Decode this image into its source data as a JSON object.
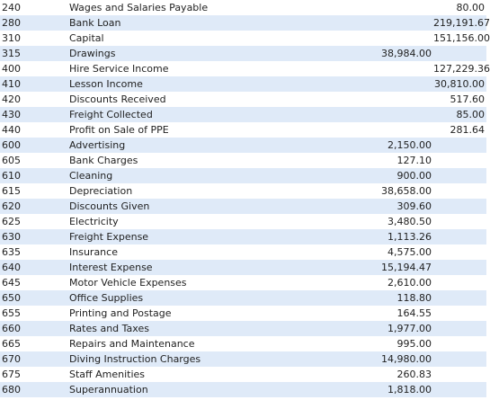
{
  "accounts": [
    {
      "code": "240",
      "name": "Wages and Salaries Payable",
      "debit": "",
      "credit": "80.00"
    },
    {
      "code": "280",
      "name": "Bank Loan",
      "debit": "",
      "credit": "219,191.67"
    },
    {
      "code": "310",
      "name": "Capital",
      "debit": "",
      "credit": "151,156.00"
    },
    {
      "code": "315",
      "name": "Drawings",
      "debit": "38,984.00",
      "credit": ""
    },
    {
      "code": "400",
      "name": "Hire Service Income",
      "debit": "",
      "credit": "127,229.36"
    },
    {
      "code": "410",
      "name": "Lesson Income",
      "debit": "",
      "credit": "30,810.00"
    },
    {
      "code": "420",
      "name": "Discounts Received",
      "debit": "",
      "credit": "517.60"
    },
    {
      "code": "430",
      "name": "Freight Collected",
      "debit": "",
      "credit": "85.00"
    },
    {
      "code": "440",
      "name": "Profit on Sale of PPE",
      "debit": "",
      "credit": "281.64"
    },
    {
      "code": "600",
      "name": "Advertising",
      "debit": "2,150.00",
      "credit": ""
    },
    {
      "code": "605",
      "name": "Bank Charges",
      "debit": "127.10",
      "credit": ""
    },
    {
      "code": "610",
      "name": "Cleaning",
      "debit": "900.00",
      "credit": ""
    },
    {
      "code": "615",
      "name": "Depreciation",
      "debit": "38,658.00",
      "credit": ""
    },
    {
      "code": "620",
      "name": "Discounts Given",
      "debit": "309.60",
      "credit": ""
    },
    {
      "code": "625",
      "name": "Electricity",
      "debit": "3,480.50",
      "credit": ""
    },
    {
      "code": "630",
      "name": "Freight Expense",
      "debit": "1,113.26",
      "credit": ""
    },
    {
      "code": "635",
      "name": "Insurance",
      "debit": "4,575.00",
      "credit": ""
    },
    {
      "code": "640",
      "name": "Interest Expense",
      "debit": "15,194.47",
      "credit": ""
    },
    {
      "code": "645",
      "name": "Motor Vehicle Expenses",
      "debit": "2,610.00",
      "credit": ""
    },
    {
      "code": "650",
      "name": "Office Supplies",
      "debit": "118.80",
      "credit": ""
    },
    {
      "code": "655",
      "name": "Printing and Postage",
      "debit": "164.55",
      "credit": ""
    },
    {
      "code": "660",
      "name": "Rates and Taxes",
      "debit": "1,977.00",
      "credit": ""
    },
    {
      "code": "665",
      "name": "Repairs and Maintenance",
      "debit": "995.00",
      "credit": ""
    },
    {
      "code": "670",
      "name": "Diving Instruction Charges",
      "debit": "14,980.00",
      "credit": ""
    },
    {
      "code": "675",
      "name": "Staff Amenities",
      "debit": "260.83",
      "credit": ""
    },
    {
      "code": "680",
      "name": "Superannuation",
      "debit": "1,818.00",
      "credit": ""
    }
  ]
}
